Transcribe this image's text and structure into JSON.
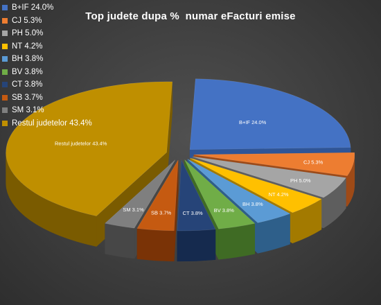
{
  "chart_data": {
    "type": "pie",
    "title": "Top judete dupa %  numar eFacturi emise",
    "legend_position": "left",
    "slices": [
      {
        "name": "B+IF",
        "value": 24.0,
        "label": "B+IF 24.0%",
        "color": "#4472C4",
        "side": "#2F5597"
      },
      {
        "name": "CJ",
        "value": 5.3,
        "label": "CJ 5.3%",
        "color": "#ED7D31",
        "side": "#9E4A17"
      },
      {
        "name": "PH",
        "value": 5.0,
        "label": "PH 5.0%",
        "color": "#A5A5A5",
        "side": "#5E5E5E"
      },
      {
        "name": "NT",
        "value": 4.2,
        "label": "NT 4.2%",
        "color": "#FFC000",
        "side": "#A37A00"
      },
      {
        "name": "BH",
        "value": 3.8,
        "label": "BH 3.8%",
        "color": "#5B9BD5",
        "side": "#2E5F8A"
      },
      {
        "name": "BV",
        "value": 3.8,
        "label": "BV 3.8%",
        "color": "#70AD47",
        "side": "#3F6B24"
      },
      {
        "name": "CT",
        "value": 3.8,
        "label": "CT 3.8%",
        "color": "#264478",
        "side": "#152A4E"
      },
      {
        "name": "SB",
        "value": 3.7,
        "label": "SB 3.7%",
        "color": "#C55A11",
        "side": "#7A3306"
      },
      {
        "name": "SM",
        "value": 3.1,
        "label": "SM 3.1%",
        "color": "#7F7F7F",
        "side": "#474747"
      },
      {
        "name": "Restul judetelor",
        "value": 43.4,
        "label": "Restul judetelor 43.4%",
        "color": "#BF8F00",
        "side": "#7A5B00"
      }
    ]
  }
}
